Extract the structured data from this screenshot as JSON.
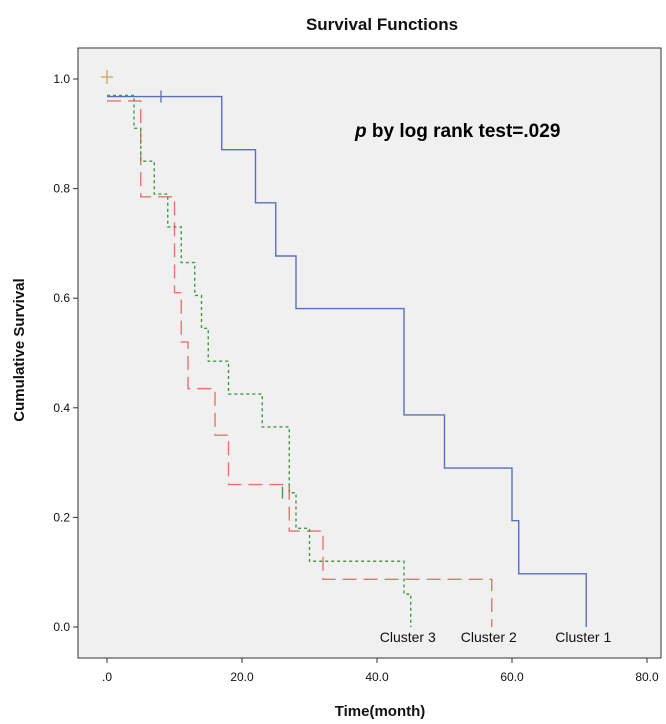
{
  "chart_data": {
    "type": "line",
    "title": "Survival Functions",
    "xlabel": "Time(month)",
    "ylabel": "Cumulative Survival",
    "xlim": [
      0,
      80
    ],
    "ylim": [
      0,
      1
    ],
    "xticks": [
      ".0",
      "20.0",
      "40.0",
      "60.0",
      "80.0"
    ],
    "yticks": [
      "0.0",
      "0.2",
      "0.4",
      "0.6",
      "0.8",
      "1.0"
    ],
    "annotation": {
      "italic_part": "p",
      "text": " by log rank test=.029"
    },
    "series": [
      {
        "name": "Cluster 1",
        "color": "#5a6fb8",
        "dash": "solid",
        "x": [
          0,
          17,
          22,
          25,
          28,
          44,
          50,
          60,
          61,
          71
        ],
        "y": [
          0.968,
          0.871,
          0.774,
          0.677,
          0.581,
          0.387,
          0.29,
          0.194,
          0.097,
          0.0
        ],
        "censored": [
          [
            8,
            0.968
          ]
        ]
      },
      {
        "name": "Cluster 2",
        "color": "#e8746c",
        "dash": "long",
        "x": [
          0,
          5,
          10,
          11,
          12,
          16,
          18,
          27,
          32,
          57
        ],
        "y": [
          0.96,
          0.785,
          0.61,
          0.52,
          0.435,
          0.35,
          0.26,
          0.175,
          0.087,
          0.0
        ],
        "censored": []
      },
      {
        "name": "Cluster 3",
        "color": "#3f9a3f",
        "dash": "dot",
        "x": [
          0,
          4,
          5,
          7,
          9,
          11,
          13,
          14,
          15,
          18,
          23,
          27,
          28,
          30,
          44,
          45
        ],
        "y": [
          0.97,
          0.91,
          0.85,
          0.79,
          0.73,
          0.665,
          0.605,
          0.545,
          0.485,
          0.425,
          0.365,
          0.245,
          0.18,
          0.12,
          0.06,
          0.0
        ],
        "censored": [
          [
            26,
            0.245
          ]
        ]
      }
    ],
    "start_marker": {
      "x": 0,
      "y": 1.0,
      "color": "#c8b070"
    },
    "grid": false,
    "legend": "end-of-curve labels"
  }
}
